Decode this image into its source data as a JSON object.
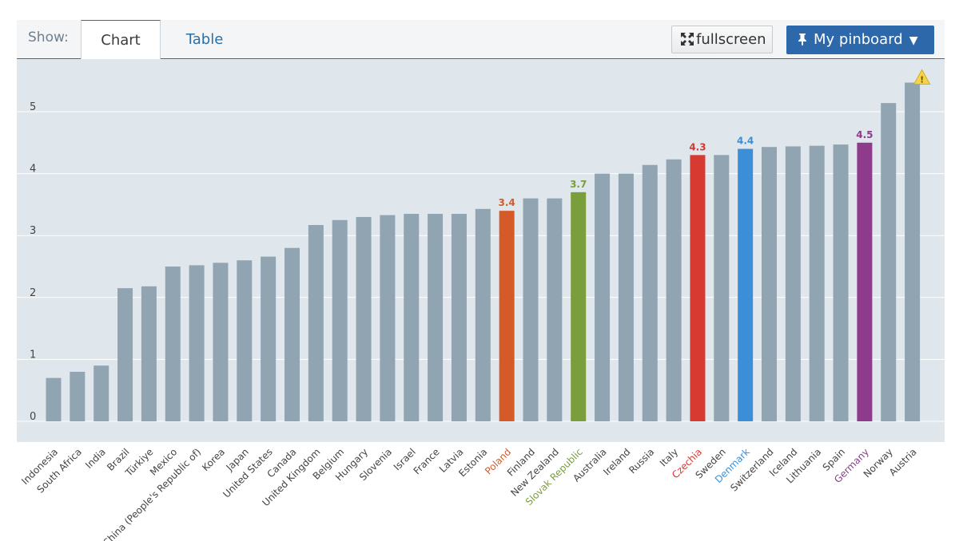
{
  "toolbar": {
    "show_label": "Show:",
    "tab_chart": "Chart",
    "tab_table": "Table",
    "fullscreen_label": "fullscreen",
    "pinboard_label": "My pinboard",
    "accent": "#2c68aa"
  },
  "chart_data": {
    "type": "bar",
    "ylim": [
      0,
      5.5
    ],
    "yticks": [
      0,
      1,
      2,
      3,
      4,
      5
    ],
    "grid": true,
    "categories": [
      "Indonesia",
      "South Africa",
      "India",
      "Brazil",
      "Türkiye",
      "Mexico",
      "China (People's Republic of)",
      "Korea",
      "Japan",
      "United States",
      "Canada",
      "United Kingdom",
      "Belgium",
      "Hungary",
      "Slovenia",
      "Israel",
      "France",
      "Latvia",
      "Estonia",
      "Poland",
      "Finland",
      "New Zealand",
      "Slovak Republic",
      "Australia",
      "Ireland",
      "Russia",
      "Italy",
      "Czechia",
      "Sweden",
      "Denmark",
      "Switzerland",
      "Iceland",
      "Lithuania",
      "Spain",
      "Germany",
      "Norway",
      "Austria"
    ],
    "values": [
      0.7,
      0.8,
      0.9,
      2.15,
      2.18,
      2.5,
      2.52,
      2.56,
      2.6,
      2.66,
      2.8,
      3.17,
      3.25,
      3.3,
      3.33,
      3.35,
      3.35,
      3.35,
      3.43,
      3.4,
      3.6,
      3.6,
      3.7,
      4.0,
      4.0,
      4.14,
      4.23,
      4.3,
      4.3,
      4.4,
      4.43,
      4.44,
      4.45,
      4.47,
      4.5,
      5.14,
      5.47
    ],
    "highlights": [
      {
        "category": "Poland",
        "label": "3.4",
        "color": "#d45a28"
      },
      {
        "category": "Slovak Republic",
        "label": "3.7",
        "color": "#7b9e3c"
      },
      {
        "category": "Czechia",
        "label": "4.3",
        "color": "#d63a30"
      },
      {
        "category": "Denmark",
        "label": "4.4",
        "color": "#3b8fd8"
      },
      {
        "category": "Germany",
        "label": "4.5",
        "color": "#8e3b8c"
      }
    ],
    "warning_category": "Austria",
    "bar_color": "#90a4b2",
    "label_color": "#444444"
  }
}
